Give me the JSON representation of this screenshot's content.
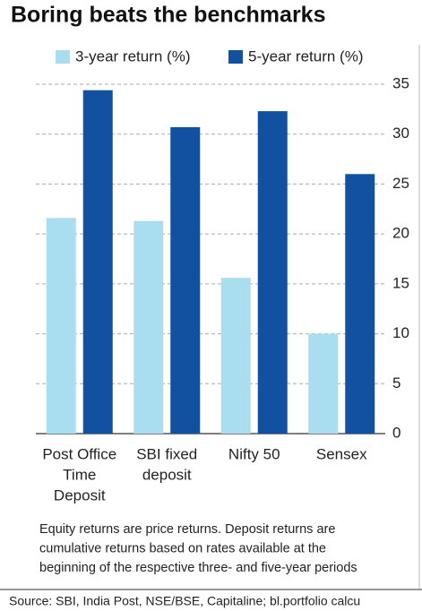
{
  "chart_data": {
    "type": "bar",
    "title": "Boring beats the benchmarks",
    "categories": [
      [
        "Post Office",
        "Time",
        "Deposit"
      ],
      [
        "SBI fixed",
        "deposit"
      ],
      [
        "Nifty 50"
      ],
      [
        "Sensex"
      ]
    ],
    "series": [
      {
        "name": "3-year return (%)",
        "color": "#a8def0",
        "values": [
          21.6,
          21.3,
          15.6,
          10.0
        ]
      },
      {
        "name": "5-year return (%)",
        "color": "#1250a0",
        "values": [
          34.4,
          30.7,
          32.3,
          26.0
        ]
      }
    ],
    "ylim": [
      0,
      35
    ],
    "yticks": [
      0,
      5,
      10,
      15,
      20,
      25,
      30,
      35
    ],
    "grid": true,
    "y_axis_side": "right",
    "note": [
      "Equity returns are price returns. Deposit returns are",
      "cumulative returns based on rates available at the",
      "beginning of the respective three- and five-year periods"
    ],
    "source": "Source: SBI, India Post, NSE/BSE, Capitaline; bl.portfolio calcu"
  }
}
